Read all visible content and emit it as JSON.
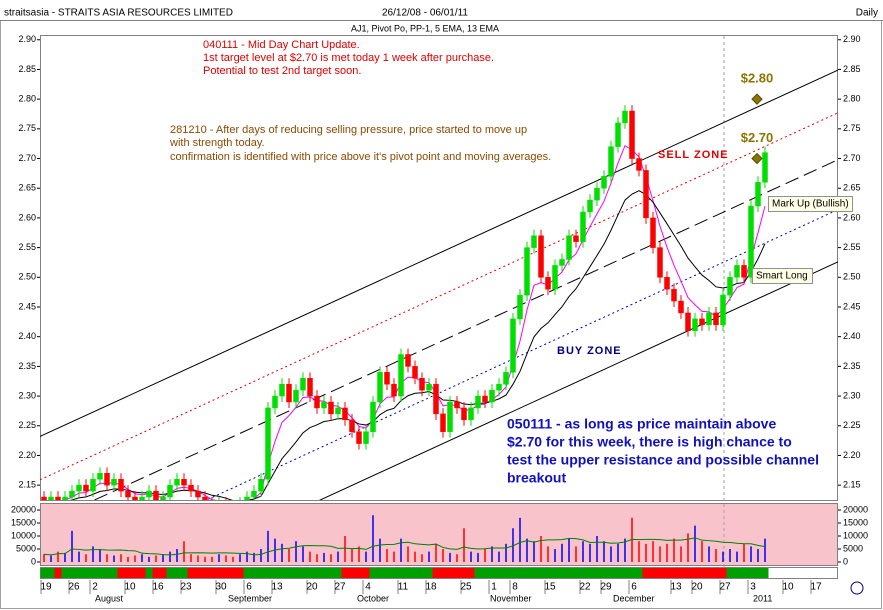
{
  "chart_data": {
    "type": "candlestick",
    "title": "straitsasia - STRAITS ASIA RESOURCES LIMITED",
    "date_range": "26/12/08 - 06/01/11",
    "period": "Daily",
    "subtitle": "AJ1, Pivot Po, PP-1, 5 EMA, 13 EMA",
    "categories": [
      "19",
      null,
      null,
      null,
      "26",
      null,
      null,
      "2",
      null,
      null,
      null,
      null,
      "10",
      null,
      null,
      null,
      "16",
      null,
      null,
      null,
      "23",
      null,
      null,
      null,
      null,
      "30",
      null,
      null,
      null,
      "6",
      null,
      null,
      null,
      "13",
      null,
      null,
      null,
      null,
      "20",
      null,
      null,
      null,
      "27",
      null,
      null,
      null,
      "4",
      null,
      null,
      null,
      null,
      "11",
      null,
      null,
      null,
      "18",
      null,
      null,
      null,
      null,
      "25",
      null,
      null,
      null,
      "1",
      null,
      null,
      "8",
      null,
      null,
      null,
      null,
      "15",
      null,
      null,
      null,
      null,
      "22",
      null,
      null,
      "29",
      null,
      null,
      null,
      "6",
      null,
      null,
      null,
      null,
      null,
      "13",
      null,
      null,
      "20",
      null,
      null,
      null,
      "27",
      null,
      null,
      null,
      "3",
      null,
      null,
      null,
      null,
      "10",
      null,
      null,
      null,
      "17"
    ],
    "months": [
      "August",
      "September",
      "October",
      "November",
      "December",
      "2011"
    ],
    "open": [
      2.13,
      2.12,
      2.13,
      2.12,
      2.13,
      2.14,
      2.15,
      2.14,
      2.16,
      2.17,
      2.15,
      2.16,
      2.14,
      2.13,
      2.12,
      2.13,
      2.14,
      2.12,
      2.13,
      2.15,
      2.16,
      2.15,
      2.14,
      2.13,
      2.12,
      2.11,
      2.12,
      2.11,
      2.1,
      2.12,
      2.13,
      2.14,
      2.16,
      2.28,
      2.3,
      2.32,
      2.29,
      2.31,
      2.33,
      2.3,
      2.28,
      2.29,
      2.27,
      2.28,
      2.26,
      2.24,
      2.22,
      2.24,
      2.29,
      2.34,
      2.32,
      2.3,
      2.37,
      2.35,
      2.33,
      2.31,
      2.32,
      2.27,
      2.24,
      2.29,
      2.28,
      2.26,
      2.28,
      2.3,
      2.29,
      2.31,
      2.32,
      2.34,
      2.43,
      2.47,
      2.55,
      2.57,
      2.5,
      2.48,
      2.52,
      2.53,
      2.57,
      2.56,
      2.61,
      2.63,
      2.65,
      2.67,
      2.72,
      2.76,
      2.78,
      2.7,
      2.68,
      2.6,
      2.55,
      2.5,
      2.48,
      2.46,
      2.44,
      2.41,
      2.43,
      2.42,
      2.44,
      2.42,
      2.47,
      2.5,
      2.52,
      2.5,
      2.62,
      2.66,
      null,
      null,
      null,
      null,
      null,
      null,
      null
    ],
    "high": [
      2.14,
      2.14,
      2.14,
      2.14,
      2.15,
      2.16,
      2.16,
      2.17,
      2.18,
      2.18,
      2.17,
      2.17,
      2.15,
      2.14,
      2.14,
      2.15,
      2.15,
      2.14,
      2.16,
      2.17,
      2.17,
      2.16,
      2.15,
      2.14,
      2.13,
      2.13,
      2.13,
      2.12,
      2.13,
      2.14,
      2.15,
      2.17,
      2.29,
      2.31,
      2.33,
      2.33,
      2.32,
      2.34,
      2.34,
      2.31,
      2.3,
      2.3,
      2.29,
      2.29,
      2.27,
      2.25,
      2.25,
      2.3,
      2.35,
      2.35,
      2.33,
      2.38,
      2.38,
      2.36,
      2.34,
      2.33,
      2.33,
      2.28,
      2.3,
      2.3,
      2.29,
      2.29,
      2.31,
      2.31,
      2.32,
      2.33,
      2.35,
      2.44,
      2.48,
      2.56,
      2.58,
      2.58,
      2.51,
      2.53,
      2.54,
      2.58,
      2.58,
      2.62,
      2.64,
      2.66,
      2.68,
      2.73,
      2.77,
      2.79,
      2.79,
      2.71,
      2.69,
      2.61,
      2.56,
      2.51,
      2.49,
      2.47,
      2.45,
      2.44,
      2.44,
      2.45,
      2.45,
      2.48,
      2.51,
      2.53,
      2.53,
      2.63,
      2.67,
      2.72,
      null,
      null,
      null,
      null,
      null,
      null,
      null
    ],
    "low": [
      2.11,
      2.11,
      2.11,
      2.11,
      2.12,
      2.13,
      2.13,
      2.13,
      2.15,
      2.14,
      2.14,
      2.13,
      2.12,
      2.11,
      2.11,
      2.12,
      2.11,
      2.11,
      2.12,
      2.14,
      2.14,
      2.13,
      2.12,
      2.11,
      2.1,
      2.1,
      2.1,
      2.09,
      2.09,
      2.11,
      2.12,
      2.13,
      2.15,
      2.27,
      2.29,
      2.28,
      2.28,
      2.3,
      2.29,
      2.27,
      2.27,
      2.26,
      2.26,
      2.25,
      2.23,
      2.21,
      2.21,
      2.23,
      2.28,
      2.31,
      2.29,
      2.29,
      2.34,
      2.32,
      2.3,
      2.3,
      2.26,
      2.23,
      2.23,
      2.27,
      2.25,
      2.25,
      2.27,
      2.28,
      2.28,
      2.3,
      2.31,
      2.33,
      2.42,
      2.46,
      2.54,
      2.49,
      2.47,
      2.47,
      2.51,
      2.52,
      2.55,
      2.55,
      2.6,
      2.62,
      2.64,
      2.66,
      2.71,
      2.75,
      2.69,
      2.67,
      2.59,
      2.54,
      2.49,
      2.47,
      2.45,
      2.43,
      2.4,
      2.4,
      2.41,
      2.41,
      2.41,
      2.41,
      2.46,
      2.49,
      2.49,
      2.49,
      2.61,
      2.65,
      null,
      null,
      null,
      null,
      null,
      null,
      null
    ],
    "close": [
      2.12,
      2.13,
      2.12,
      2.13,
      2.14,
      2.15,
      2.14,
      2.16,
      2.17,
      2.15,
      2.16,
      2.14,
      2.13,
      2.12,
      2.13,
      2.14,
      2.12,
      2.13,
      2.15,
      2.16,
      2.15,
      2.14,
      2.13,
      2.12,
      2.11,
      2.12,
      2.11,
      2.1,
      2.12,
      2.13,
      2.14,
      2.16,
      2.28,
      2.3,
      2.32,
      2.29,
      2.31,
      2.33,
      2.3,
      2.28,
      2.29,
      2.27,
      2.28,
      2.26,
      2.24,
      2.22,
      2.24,
      2.29,
      2.34,
      2.32,
      2.3,
      2.37,
      2.35,
      2.33,
      2.31,
      2.32,
      2.27,
      2.24,
      2.29,
      2.28,
      2.26,
      2.28,
      2.3,
      2.29,
      2.31,
      2.32,
      2.34,
      2.43,
      2.47,
      2.55,
      2.57,
      2.5,
      2.48,
      2.52,
      2.53,
      2.57,
      2.56,
      2.61,
      2.63,
      2.65,
      2.67,
      2.72,
      2.76,
      2.78,
      2.7,
      2.68,
      2.6,
      2.55,
      2.5,
      2.48,
      2.46,
      2.44,
      2.41,
      2.43,
      2.42,
      2.44,
      2.42,
      2.47,
      2.5,
      2.52,
      2.5,
      2.62,
      2.66,
      2.71,
      null,
      null,
      null,
      null,
      null,
      null,
      null
    ],
    "volume": [
      3000,
      2500,
      4000,
      3500,
      12000,
      4000,
      3000,
      6000,
      5000,
      3000,
      2500,
      3000,
      2000,
      2500,
      3000,
      2000,
      2500,
      3000,
      4000,
      5000,
      8000,
      3000,
      2500,
      2000,
      2000,
      3000,
      2500,
      2000,
      3000,
      4000,
      3500,
      5000,
      12000,
      9000,
      7000,
      5000,
      8000,
      6000,
      4000,
      3000,
      3500,
      3000,
      4000,
      10000,
      5000,
      6000,
      4000,
      18000,
      9000,
      5000,
      4000,
      9000,
      6000,
      4000,
      3000,
      4000,
      7000,
      5000,
      3500,
      3000,
      13000,
      4000,
      3500,
      5000,
      6000,
      4000,
      7000,
      13000,
      17000,
      9000,
      8000,
      10000,
      6000,
      5000,
      7000,
      9000,
      6000,
      8000,
      7000,
      10000,
      8000,
      6000,
      7000,
      9000,
      17000,
      8000,
      7000,
      8000,
      6000,
      7000,
      9000,
      6000,
      11000,
      14000,
      8000,
      6000,
      5000,
      4000,
      5000,
      4000,
      7000,
      6000,
      5000,
      9000,
      null,
      null,
      null,
      null,
      null,
      null,
      null
    ],
    "up_color": "#00e000",
    "down_color": "#ff0000",
    "volume_up_color": "#0000ff",
    "volume_down_color": "#ff0000",
    "ema": [
      {
        "period": 5,
        "color": "#ff00ff"
      },
      {
        "period": 13,
        "color": "#000000"
      }
    ],
    "volume_ma": {
      "period": 10,
      "color": "#008000"
    },
    "ylim": [
      2.125,
      2.908
    ],
    "yticks": [
      2.15,
      {
        "value": 2.2,
        "label": "2.20"
      },
      2.25,
      {
        "value": 2.3,
        "label": "2.30"
      },
      2.35,
      {
        "value": 2.4,
        "label": "2.40"
      },
      2.45,
      {
        "value": 2.5,
        "label": "2.50"
      },
      2.55,
      {
        "value": 2.6,
        "label": "2.60"
      },
      2.65,
      {
        "value": 2.7,
        "label": "2.70"
      },
      2.75,
      {
        "value": 2.8,
        "label": "2.80"
      },
      2.85,
      {
        "value": 2.9,
        "label": "2.90"
      }
    ],
    "volume_ylim": [
      0,
      22700
    ],
    "volume_ticks": [
      0,
      5000,
      10000,
      15000,
      20000
    ],
    "channels": [
      {
        "color": "#000000",
        "style": "solid",
        "y_start": 2.232,
        "y_end": 2.849
      },
      {
        "color": "#e00000",
        "style": "dotted",
        "y_start": 2.159,
        "y_end": 2.777
      },
      {
        "color": "#000000",
        "style": "dashed",
        "y_start": 2.083,
        "y_end": 2.698
      },
      {
        "color": "#0000c0",
        "style": "dotted",
        "y_start": 1.996,
        "y_end": 2.614
      },
      {
        "color": "#000000",
        "style": "solid",
        "y_start": 1.908,
        "y_end": 2.526
      }
    ],
    "targets": [
      {
        "label": "$2.80",
        "value": 2.8
      },
      {
        "label": "$2.70",
        "value": 2.7
      }
    ],
    "notes": {
      "update": [
        "040111 - Mid Day Chart Update.",
        "1st target level at $2.70 is met today 1 week after purchase.",
        "Potential to test 2nd target soon."
      ],
      "earlier": [
        "281210 - After days of reducing selling pressure, price started to move up",
        "with strength today.",
        "confirmation is identified with price above it's pivot point and moving averages."
      ],
      "outlook": [
        "050111 - as long as price maintain above",
        "$2.70 for this week, there is high chance to",
        "test the upper resistance and possible channel",
        "breakout"
      ],
      "sell_zone": "SELL ZONE",
      "buy_zone": "BUY ZONE",
      "mark_up": "Mark Up (Bullish)",
      "smart_long": "Smart Long"
    }
  }
}
